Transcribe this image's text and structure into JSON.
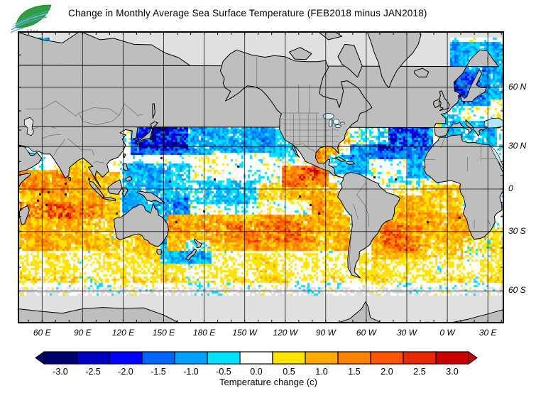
{
  "header": {
    "title": "Change in Monthly Average Sea Surface Temperature (FEB2018 minus JAN2018)",
    "logo": {
      "caption_line1": "BRUA",
      "caption_line2": "HAII"
    }
  },
  "map": {
    "lat_labels": [
      {
        "label": "60 N",
        "lat": 60
      },
      {
        "label": "30 N",
        "lat": 30
      },
      {
        "label": "0",
        "lat": 0
      },
      {
        "label": "30 S",
        "lat": -30
      },
      {
        "label": "60 S",
        "lat": -60
      }
    ],
    "lon_labels": [
      {
        "label": "60 E",
        "lon": 60
      },
      {
        "label": "90 E",
        "lon": 90
      },
      {
        "label": "120 E",
        "lon": 120
      },
      {
        "label": "150 E",
        "lon": 150
      },
      {
        "label": "180 E",
        "lon": 180
      },
      {
        "label": "150 W",
        "lon": 210
      },
      {
        "label": "120 W",
        "lon": 240
      },
      {
        "label": "90 W",
        "lon": 270
      },
      {
        "label": "60 W",
        "lon": 300
      },
      {
        "label": "30 W",
        "lon": 330
      },
      {
        "label": "0 W",
        "lon": 360
      },
      {
        "label": "30 E",
        "lon": 390
      }
    ],
    "colors": {
      "land": "#BEBEBE",
      "no_data": "#E0E0E0",
      "coast": "#000000",
      "grid": "#000000",
      "inland_water": "#BFE9FF",
      "border": "#404040"
    }
  },
  "colorbar": {
    "ticks": [
      "-3.0",
      "-2.5",
      "-2.0",
      "-1.5",
      "-1.0",
      "-0.5",
      "0.0",
      "0.5",
      "1.0",
      "1.5",
      "2.0",
      "2.5",
      "3.0"
    ],
    "colors": [
      "#00006E",
      "#0000C3",
      "#0000FF",
      "#0064FF",
      "#00A0FF",
      "#00E1FF",
      "#FFFFFF",
      "#FFE400",
      "#FFAA00",
      "#FF8200",
      "#FF5500",
      "#E82800",
      "#C80000"
    ],
    "left_arrow_color": "#00006E",
    "right_arrow_color": "#C80000",
    "caption": "Temperature change  (c)"
  },
  "chart_data": {
    "type": "heatmap",
    "title": "Change in Monthly Average Sea Surface Temperature (FEB2018 minus JAN2018)",
    "units": "C",
    "projection": "mercator",
    "lon_range": [
      42,
      402
    ],
    "lat_range": [
      -70,
      75
    ],
    "value_range": [
      -3.0,
      3.0
    ],
    "value_step": 0.5,
    "regions": [
      {
        "name": "southern-ocean-yellow",
        "lon": [
          42.01,
          401.9
        ],
        "lat": [
          -57,
          -43
        ],
        "v": 0.55,
        "w": 0.7,
        "amp": 1.2
      },
      {
        "name": "indian-ocean-warm",
        "lon": [
          42.01,
          118
        ],
        "lat": [
          -42,
          13
        ],
        "v": 0.95,
        "w": 0.85,
        "amp": 1.0
      },
      {
        "name": "arabian-somali-warm",
        "lon": [
          42.01,
          80
        ],
        "lat": [
          -3,
          14
        ],
        "v": 1.6,
        "w": 0.7,
        "amp": 1.0
      },
      {
        "name": "south-indian-band",
        "lon": [
          44,
          105
        ],
        "lat": [
          -22,
          -9
        ],
        "v": 1.55,
        "w": 0.6,
        "amp": 1.3
      },
      {
        "name": "indian-red-specks",
        "lon": [
          48,
          98
        ],
        "lat": [
          -21,
          -11
        ],
        "v": 2.0,
        "w": 0.35,
        "amp": 1.6
      },
      {
        "name": "bay-of-bengal",
        "lon": [
          80,
          100
        ],
        "lat": [
          4,
          22
        ],
        "v": 0.85,
        "w": 0.6,
        "amp": 1.0
      },
      {
        "name": "south-of-australia",
        "lon": [
          104,
          146
        ],
        "lat": [
          -46,
          -32
        ],
        "v": 0.85,
        "w": 0.6,
        "amp": 1.1
      },
      {
        "name": "west-tropical-pacific-cool",
        "lon": [
          120,
          170
        ],
        "lat": [
          -18,
          18
        ],
        "v": -0.9,
        "w": 0.75,
        "amp": 1.1
      },
      {
        "name": "coral-sea-cool",
        "lon": [
          142,
          168
        ],
        "lat": [
          -26,
          -6
        ],
        "v": -1.5,
        "w": 0.7,
        "amp": 1.2
      },
      {
        "name": "tasman-nz-cool",
        "lon": [
          148,
          185
        ],
        "lat": [
          -48,
          -30
        ],
        "v": -1.5,
        "w": 0.7,
        "amp": 1.2
      },
      {
        "name": "nw-pacific-cool",
        "lon": [
          125,
          185
        ],
        "lat": [
          24,
          52
        ],
        "v": -1.5,
        "w": 0.85,
        "amp": 1.1
      },
      {
        "name": "kuroshio-core",
        "lon": [
          128,
          168
        ],
        "lat": [
          27,
          43
        ],
        "v": -2.3,
        "w": 0.6,
        "amp": 1.4
      },
      {
        "name": "central-north-pacific-cool",
        "lon": [
          168,
          -128
        ],
        "lat": [
          26,
          56
        ],
        "v": -1.05,
        "w": 0.85,
        "amp": 1.0
      },
      {
        "name": "bering-sea",
        "lon": [
          163,
          -158
        ],
        "lat": [
          51,
          64
        ],
        "v": -0.85,
        "w": 0.7,
        "amp": 1.0
      },
      {
        "name": "gulf-of-alaska",
        "lon": [
          -162,
          -126
        ],
        "lat": [
          44,
          60
        ],
        "v": -0.95,
        "w": 0.7,
        "amp": 1.0
      },
      {
        "name": "california-current",
        "lon": [
          -132,
          -112
        ],
        "lat": [
          23,
          44
        ],
        "v": -0.6,
        "w": 0.6,
        "amp": 1.0
      },
      {
        "name": "equatorial-central-pacific",
        "lon": [
          170,
          -142
        ],
        "lat": [
          -11,
          6
        ],
        "v": -0.75,
        "w": 0.7,
        "amp": 1.2
      },
      {
        "name": "south-pacific-warm-band",
        "lon": [
          152,
          -72
        ],
        "lat": [
          -41,
          -19
        ],
        "v": 1.25,
        "w": 0.8,
        "amp": 1.0
      },
      {
        "name": "south-pacific-warm-core",
        "lon": [
          178,
          -98
        ],
        "lat": [
          -37,
          -23
        ],
        "v": 1.75,
        "w": 0.55,
        "amp": 1.3
      },
      {
        "name": "peru-coastal-warm",
        "lon": [
          -100,
          -76
        ],
        "lat": [
          -19,
          -2
        ],
        "v": 1.6,
        "w": 0.7,
        "amp": 1.0
      },
      {
        "name": "east-pacific-equator-warm",
        "lon": [
          -140,
          -82
        ],
        "lat": [
          -8,
          5
        ],
        "v": 1.0,
        "w": 0.6,
        "amp": 1.1
      },
      {
        "name": "central-america-warm",
        "lon": [
          -122,
          -88
        ],
        "lat": [
          2,
          17
        ],
        "v": 1.9,
        "w": 0.7,
        "amp": 1.0
      },
      {
        "name": "central-america-core",
        "lon": [
          -110,
          -94
        ],
        "lat": [
          6,
          15
        ],
        "v": 2.5,
        "w": 0.5,
        "amp": 1.3
      },
      {
        "name": "gulf-of-mexico-warm",
        "lon": [
          -98,
          -80
        ],
        "lat": [
          17,
          31
        ],
        "v": 1.7,
        "w": 0.6,
        "amp": 1.2
      },
      {
        "name": "caribbean-cool",
        "lon": [
          -88,
          -58
        ],
        "lat": [
          11,
          24
        ],
        "v": -1.2,
        "w": 0.6,
        "amp": 1.1
      },
      {
        "name": "north-atlantic-cool",
        "lon": [
          -72,
          -10
        ],
        "lat": [
          22,
          53
        ],
        "v": -1.3,
        "w": 0.85,
        "amp": 1.0
      },
      {
        "name": "north-atlantic-core",
        "lon": [
          -52,
          -14
        ],
        "lat": [
          28,
          47
        ],
        "v": -2.1,
        "w": 0.6,
        "amp": 1.3
      },
      {
        "name": "canary-upwelling-cool",
        "lon": [
          -30,
          -11
        ],
        "lat": [
          8,
          31
        ],
        "v": -1.7,
        "w": 0.6,
        "amp": 1.1
      },
      {
        "name": "gulf-stream-warm-spots",
        "lon": [
          -76,
          -44
        ],
        "lat": [
          32,
          43
        ],
        "v": 1.2,
        "w": 0.45,
        "amp": 1.7
      },
      {
        "name": "irminger-sea",
        "lon": [
          -46,
          -14
        ],
        "lat": [
          54,
          67
        ],
        "v": -0.5,
        "w": 0.6,
        "amp": 1.0
      },
      {
        "name": "labrador-sea",
        "lon": [
          -64,
          -46
        ],
        "lat": [
          50,
          66
        ],
        "v": -0.35,
        "w": 0.6,
        "amp": 1.0
      },
      {
        "name": "european-shelf",
        "lon": [
          -13,
          10
        ],
        "lat": [
          44,
          62
        ],
        "v": -0.8,
        "w": 0.6,
        "amp": 1.0
      },
      {
        "name": "norwegian-sea",
        "lon": [
          0,
          44
        ],
        "lat": [
          55,
          73
        ],
        "v": -1.3,
        "w": 0.7,
        "amp": 1.0
      },
      {
        "name": "baltic-north-sea",
        "lon": [
          4,
          32
        ],
        "lat": [
          52,
          66
        ],
        "v": -1.9,
        "w": 0.6,
        "amp": 1.1
      },
      {
        "name": "mediterranean",
        "lon": [
          -5,
          37
        ],
        "lat": [
          29.5,
          45.5
        ],
        "v": -1.0,
        "w": 0.8,
        "amp": 1.0
      },
      {
        "name": "tropical-atlantic-warm",
        "lon": [
          -42,
          12
        ],
        "lat": [
          -21,
          3
        ],
        "v": 0.95,
        "w": 0.7,
        "amp": 1.0
      },
      {
        "name": "equatorial-atlantic-cyan",
        "lon": [
          -44,
          -18
        ],
        "lat": [
          -4,
          9
        ],
        "v": -0.5,
        "w": 0.5,
        "amp": 1.3
      },
      {
        "name": "south-atlantic-warm",
        "lon": [
          -56,
          16
        ],
        "lat": [
          -46,
          -17
        ],
        "v": 1.15,
        "w": 0.8,
        "amp": 1.0
      },
      {
        "name": "south-atlantic-core",
        "lon": [
          -50,
          -18
        ],
        "lat": [
          -43,
          -26
        ],
        "v": 1.8,
        "w": 0.55,
        "amp": 1.3
      },
      {
        "name": "agulhas-warm",
        "lon": [
          14,
          44
        ],
        "lat": [
          -43,
          -27
        ],
        "v": 1.15,
        "w": 0.6,
        "amp": 1.0
      },
      {
        "name": "south-africa-mixed",
        "lon": [
          12,
          32
        ],
        "lat": [
          -46,
          -34
        ],
        "v": -0.6,
        "w": 0.35,
        "amp": 1.8
      },
      {
        "name": "barents-cool",
        "lon": [
          42.01,
          66
        ],
        "lat": [
          66,
          76
        ],
        "v": -1.5,
        "w": 0.7,
        "amp": 1.0
      },
      {
        "name": "nz-east-cool",
        "lon": [
          166,
          184
        ],
        "lat": [
          -47,
          -36
        ],
        "v": -1.3,
        "w": 0.5,
        "amp": 1.4
      }
    ]
  }
}
